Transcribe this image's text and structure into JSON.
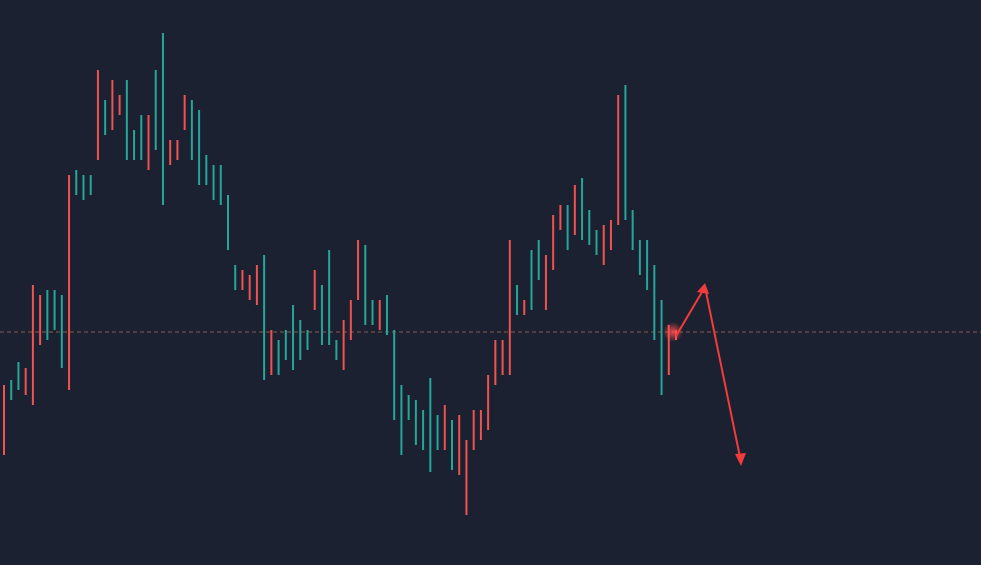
{
  "chart_data": {
    "type": "range-bar",
    "high": [
      180,
      185,
      203,
      197,
      280,
      270,
      275,
      275,
      270,
      390,
      395,
      390,
      390,
      495,
      465,
      485,
      470,
      485,
      435,
      450,
      450,
      495,
      532,
      425,
      425,
      470,
      465,
      455,
      410,
      400,
      400,
      370,
      300,
      295,
      290,
      300,
      310,
      235,
      225,
      235,
      260,
      245,
      235,
      295,
      280,
      315,
      225,
      245,
      265,
      325,
      320,
      265,
      265,
      270,
      235,
      180,
      170,
      165,
      155,
      187,
      150,
      160,
      145,
      150,
      125,
      155,
      155,
      190,
      225,
      225,
      325,
      280,
      265,
      315,
      325,
      310,
      350,
      360,
      360,
      380,
      387,
      355,
      335,
      340,
      345,
      470,
      480,
      355,
      325,
      325,
      300,
      265,
      240,
      235
    ],
    "low": [
      110,
      165,
      175,
      170,
      160,
      220,
      225,
      235,
      197,
      175,
      370,
      365,
      370,
      405,
      430,
      435,
      450,
      405,
      405,
      405,
      395,
      415,
      360,
      400,
      405,
      435,
      405,
      380,
      380,
      365,
      360,
      315,
      275,
      275,
      265,
      260,
      185,
      190,
      190,
      205,
      195,
      205,
      215,
      255,
      220,
      220,
      205,
      195,
      225,
      265,
      240,
      240,
      235,
      230,
      145,
      110,
      145,
      120,
      115,
      93,
      115,
      115,
      95,
      90,
      50,
      115,
      125,
      135,
      180,
      190,
      190,
      250,
      250,
      255,
      285,
      255,
      295,
      335,
      315,
      330,
      325,
      320,
      310,
      300,
      315,
      340,
      345,
      315,
      290,
      275,
      225,
      170,
      190,
      225
    ],
    "rising": [
      false,
      true,
      true,
      false,
      false,
      false,
      true,
      true,
      true,
      false,
      true,
      true,
      true,
      false,
      true,
      false,
      false,
      true,
      true,
      true,
      false,
      true,
      true,
      false,
      false,
      false,
      true,
      true,
      true,
      true,
      true,
      true,
      true,
      false,
      false,
      false,
      true,
      false,
      true,
      true,
      true,
      true,
      true,
      false,
      true,
      true,
      true,
      false,
      false,
      false,
      true,
      true,
      false,
      true,
      true,
      true,
      true,
      true,
      true,
      true,
      true,
      false,
      true,
      false,
      false,
      false,
      false,
      false,
      false,
      false,
      false,
      true,
      false,
      true,
      true,
      false,
      false,
      false,
      true,
      false,
      true,
      true,
      true,
      false,
      false,
      false,
      true,
      true,
      true,
      true,
      true,
      true,
      false,
      false
    ],
    "up_color": "#26a69a",
    "down_color": "#ef5350",
    "level": 233,
    "level_color": "#8a5a4e",
    "ylim": [
      0,
      565
    ]
  }
}
